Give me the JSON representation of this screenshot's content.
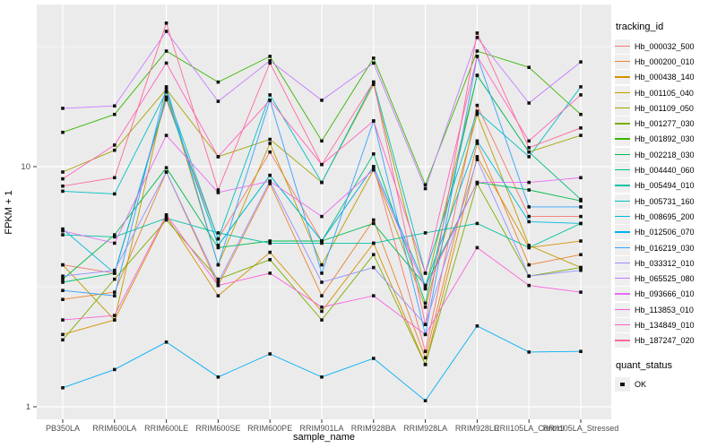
{
  "figure": {
    "y_axis_label": "FPKM + 1",
    "x_axis_label": "sample_name"
  },
  "legend": {
    "tracking_title": "tracking_id",
    "quant_title": "quant_status",
    "quant_items": [
      {
        "label": "OK",
        "marker": "black-square"
      }
    ]
  },
  "chart_data": {
    "type": "line",
    "title": "",
    "xlabel": "sample_name",
    "ylabel": "FPKM + 1",
    "y_scale": "log10",
    "ylim": [
      0.88,
      47
    ],
    "y_major_ticks": [
      {
        "label": "10",
        "value": 10
      },
      {
        "label": "1",
        "value": 1
      }
    ],
    "y_minor_ticks": [
      31.62,
      3.162
    ],
    "grid": true,
    "grid_color": "#FFFFFF",
    "panel_background": "#EBEBEB",
    "tick_label_color": "#4D4D4D",
    "point_marker": {
      "shape": "square",
      "color": "#111111",
      "legend_label": "OK"
    },
    "legend_position": "right",
    "categories": [
      "PB350LA",
      "RRIM600LA",
      "RRIM600LE",
      "RRIM600SE",
      "RRIM600PE",
      "RRIM901LA",
      "RRIM928BA",
      "RRIM928LA",
      "RRIM928LE",
      "RRII105LA_Control",
      "RRII105LA_Stressed"
    ],
    "series": [
      {
        "name": "Hb_000032_500",
        "color": "#F8766D",
        "values": [
          3.9,
          3.6,
          19,
          5.0,
          11.5,
          4.9,
          10,
          1.7,
          18,
          6.2,
          6.2
        ]
      },
      {
        "name": "Hb_000200_010",
        "color": "#EA8331",
        "values": [
          2.8,
          3.0,
          9.5,
          3.2,
          8.5,
          2.9,
          6.0,
          1.6,
          12.5,
          3.9,
          4.3
        ]
      },
      {
        "name": "Hb_000438_140",
        "color": "#D89000",
        "values": [
          2.0,
          2.3,
          6.2,
          2.9,
          4.4,
          2.5,
          4.8,
          1.5,
          11,
          4.6,
          4.9
        ]
      },
      {
        "name": "Hb_001105_040",
        "color": "#C09B00",
        "values": [
          3.9,
          2.3,
          20.5,
          3.9,
          12.5,
          3.9,
          9.7,
          2.6,
          16.5,
          4.7,
          3.8
        ]
      },
      {
        "name": "Hb_001109_050",
        "color": "#A3A500",
        "values": [
          9.5,
          11.7,
          21,
          11,
          13,
          8.6,
          22,
          3.1,
          24,
          11.5,
          13.5
        ]
      },
      {
        "name": "Hb_001277_030",
        "color": "#7CAE00",
        "values": [
          1.9,
          3.4,
          6.0,
          3.4,
          4.1,
          2.3,
          4.3,
          1.5,
          8.5,
          3.5,
          3.8
        ]
      },
      {
        "name": "Hb_001892_030",
        "color": "#39B600",
        "values": [
          13.9,
          16.5,
          30.3,
          22.5,
          28.8,
          12.8,
          28.3,
          8.4,
          30.3,
          25.9,
          16.5
        ]
      },
      {
        "name": "Hb_002218_030",
        "color": "#00BB4E",
        "values": [
          3.4,
          5.2,
          9.9,
          4.6,
          4.9,
          4.9,
          5.8,
          3.2,
          8.6,
          8.0,
          7.2
        ]
      },
      {
        "name": "Hb_004440_060",
        "color": "#00BF7D",
        "values": [
          3.3,
          3.6,
          19.5,
          4.7,
          9.2,
          4.9,
          11.3,
          2.7,
          24,
          11.5,
          7.3
        ]
      },
      {
        "name": "Hb_005494_010",
        "color": "#00C1A3",
        "values": [
          5.2,
          5.1,
          6.1,
          5.3,
          4.8,
          4.8,
          4.8,
          5.3,
          5.8,
          4.6,
          5.8
        ]
      },
      {
        "name": "Hb_005731_160",
        "color": "#00BFC4",
        "values": [
          7.9,
          7.7,
          20.5,
          5.0,
          19.9,
          8.6,
          22.5,
          3.6,
          17,
          11,
          21.5
        ]
      },
      {
        "name": "Hb_008695_200",
        "color": "#00BAE0",
        "values": [
          5.5,
          3.6,
          19.5,
          4.7,
          9.2,
          4.9,
          10,
          3.2,
          12.8,
          5.9,
          5.8
        ]
      },
      {
        "name": "Hb_012506_070",
        "color": "#00B0F6",
        "values": [
          1.2,
          1.43,
          1.86,
          1.33,
          1.66,
          1.33,
          1.59,
          1.06,
          2.17,
          1.69,
          1.7
        ]
      },
      {
        "name": "Hb_016219_030",
        "color": "#35A2FF",
        "values": [
          3.05,
          2.9,
          21.5,
          3.9,
          18.9,
          3.6,
          15.5,
          2.0,
          28.8,
          6.8,
          6.8
        ]
      },
      {
        "name": "Hb_033312_010",
        "color": "#9590FF",
        "values": [
          3.5,
          3.7,
          9.5,
          3.3,
          8.7,
          3.3,
          3.8,
          2.2,
          10.7,
          3.5,
          3.7
        ]
      },
      {
        "name": "Hb_065525_080",
        "color": "#C77CFF",
        "values": [
          17.5,
          17.9,
          36.6,
          18.7,
          27.6,
          18.9,
          27,
          8.1,
          34.5,
          18.4,
          27.3
        ]
      },
      {
        "name": "Hb_093666_010",
        "color": "#E76BF3",
        "values": [
          5.4,
          4.8,
          13.5,
          7.8,
          8.7,
          6.2,
          9.7,
          3.1,
          8.6,
          8.6,
          9.0
        ]
      },
      {
        "name": "Hb_113853_010",
        "color": "#FA62DB",
        "values": [
          2.3,
          2.4,
          6.3,
          3.2,
          3.6,
          2.6,
          2.9,
          2.0,
          4.6,
          3.2,
          3.0
        ]
      },
      {
        "name": "Hb_134849_010",
        "color": "#FF62BC",
        "values": [
          8.9,
          12.3,
          27,
          11,
          18.9,
          10.2,
          15.5,
          3.6,
          28.8,
          12.8,
          19.9
        ]
      },
      {
        "name": "Hb_187247_020",
        "color": "#FF6A98",
        "values": [
          8.3,
          9.0,
          39.6,
          8.0,
          27,
          10.2,
          22.5,
          2.2,
          36,
          12,
          14.5
        ]
      }
    ]
  }
}
